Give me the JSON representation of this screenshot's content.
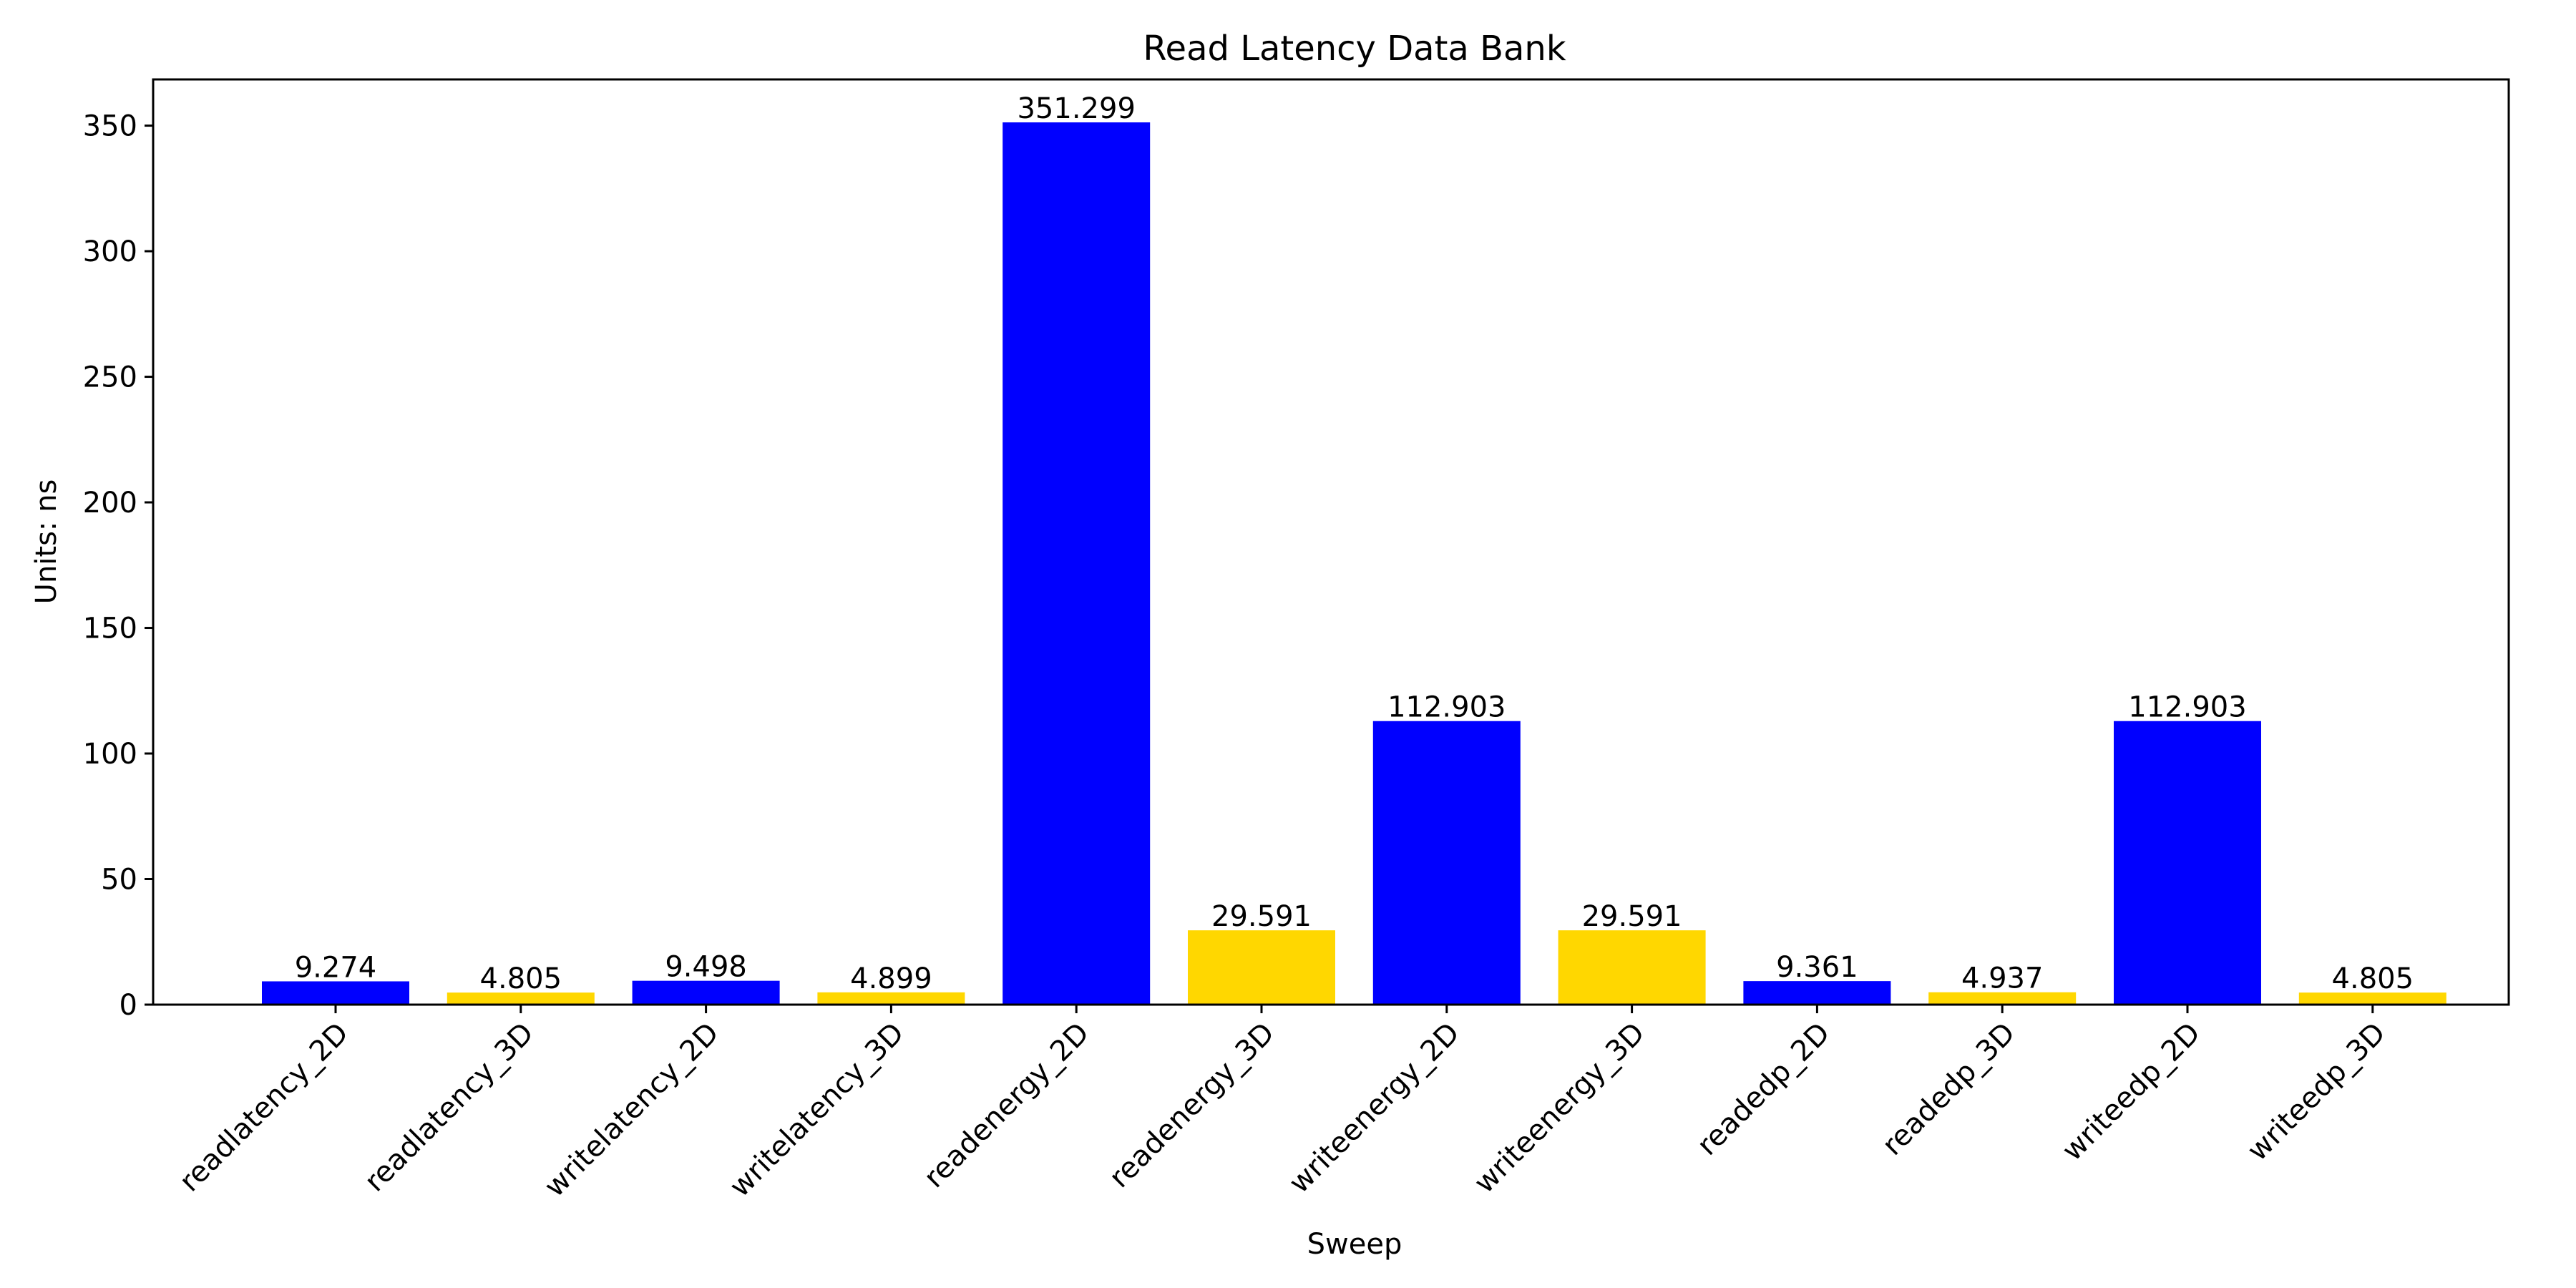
{
  "chart_data": {
    "type": "bar",
    "title": "Read Latency Data Bank",
    "xlabel": "Sweep",
    "ylabel": "Units: ns",
    "ylim": [
      0,
      368.4
    ],
    "yticks": [
      0,
      50,
      100,
      150,
      200,
      250,
      300,
      350
    ],
    "ytick_labels": [
      "0",
      "50",
      "100",
      "150",
      "200",
      "250",
      "300",
      "350"
    ],
    "categories": [
      "readlatency_2D",
      "readlatency_3D",
      "writelatency_2D",
      "writelatency_3D",
      "readenergy_2D",
      "readenergy_3D",
      "writeenergy_2D",
      "writeenergy_3D",
      "readedp_2D",
      "readedp_3D",
      "writeedp_2D",
      "writeedp_3D"
    ],
    "values": [
      9.274,
      4.805,
      9.498,
      4.899,
      351.299,
      29.591,
      112.903,
      29.591,
      9.361,
      4.937,
      112.903,
      4.805
    ],
    "value_labels": [
      "9.274",
      "4.805",
      "9.498",
      "4.899",
      "351.299",
      "29.591",
      "112.903",
      "29.591",
      "9.361",
      "4.937",
      "112.903",
      "4.805"
    ],
    "bar_colors": [
      "#0000ff",
      "#ffd700",
      "#0000ff",
      "#ffd700",
      "#0000ff",
      "#ffd700",
      "#0000ff",
      "#ffd700",
      "#0000ff",
      "#ffd700",
      "#0000ff",
      "#ffd700"
    ],
    "grid": false,
    "legend": "none"
  }
}
